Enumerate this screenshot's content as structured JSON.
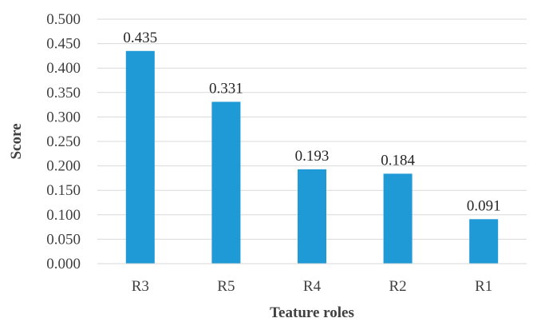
{
  "chart_data": {
    "type": "bar",
    "title": "",
    "xlabel": "Teature roles",
    "ylabel": "Score",
    "categories": [
      "R3",
      "R5",
      "R4",
      "R2",
      "R1"
    ],
    "values": [
      0.435,
      0.331,
      0.193,
      0.184,
      0.091
    ],
    "data_labels": [
      "0.435",
      "0.331",
      "0.193",
      "0.184",
      "0.091"
    ],
    "ylim": [
      0,
      0.5
    ],
    "yticks": [
      0,
      0.05,
      0.1,
      0.15,
      0.2,
      0.25,
      0.3,
      0.35,
      0.4,
      0.45,
      0.5
    ],
    "ytick_labels": [
      "0.000",
      "0.050",
      "0.100",
      "0.150",
      "0.200",
      "0.250",
      "0.300",
      "0.350",
      "0.400",
      "0.450",
      "0.500"
    ],
    "grid": true,
    "legend": "none",
    "bar_color": "#1f9ad6"
  }
}
